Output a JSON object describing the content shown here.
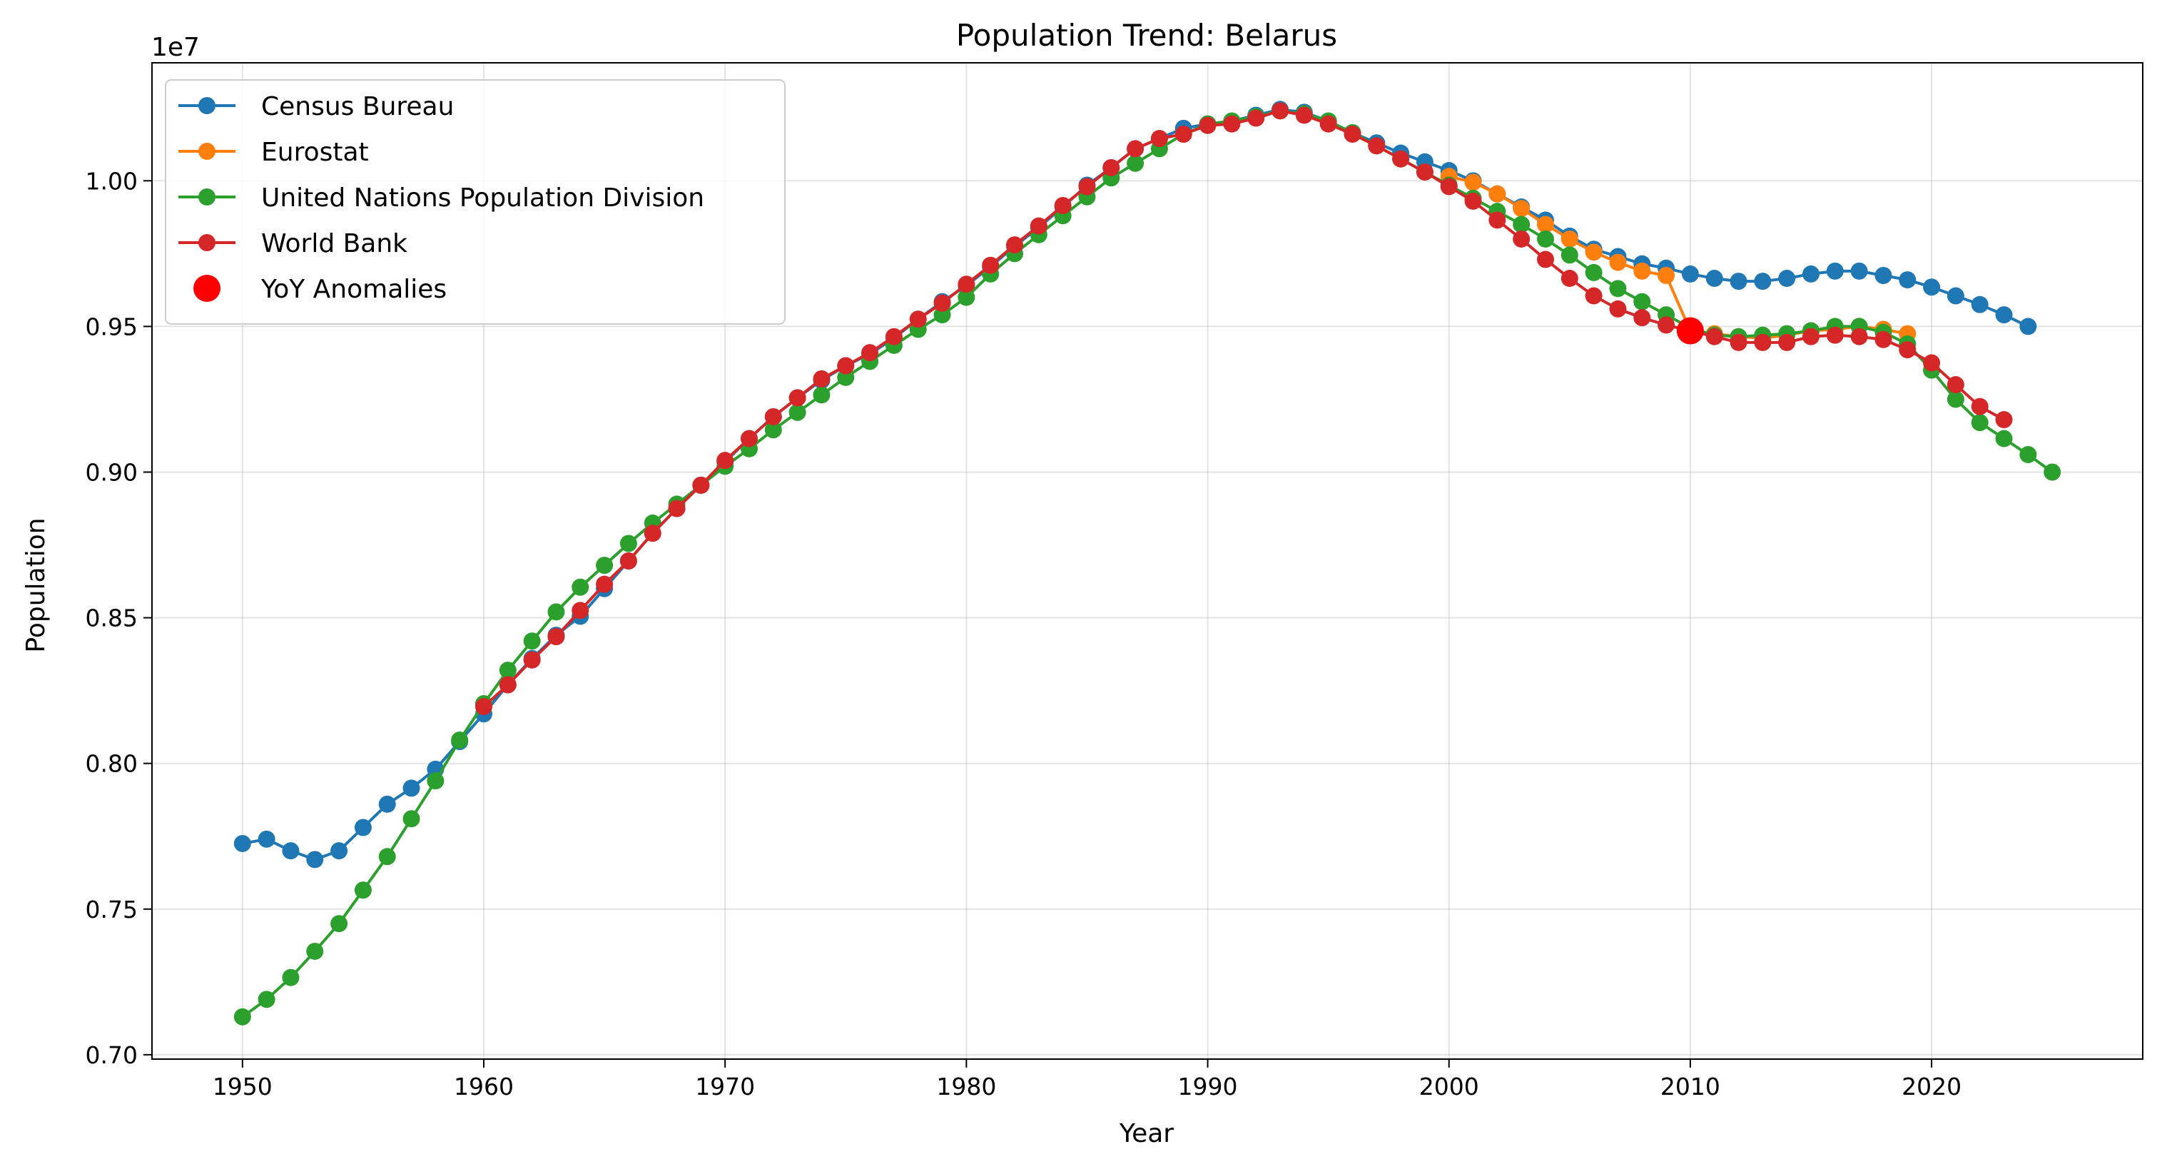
{
  "chart_data": {
    "type": "line",
    "title": "Population Trend: Belarus",
    "xlabel": "Year",
    "ylabel": "Population",
    "y_offset_label": "1e7",
    "xlim": [
      1946.25,
      2028.75
    ],
    "ylim": [
      0.6985,
      1.0405
    ],
    "x_ticks": [
      1950,
      1960,
      1970,
      1980,
      1990,
      2000,
      2010,
      2020
    ],
    "x_tick_labels": [
      "1950",
      "1960",
      "1970",
      "1980",
      "1990",
      "2000",
      "2010",
      "2020"
    ],
    "y_ticks": [
      0.7,
      0.75,
      0.8,
      0.85,
      0.9,
      0.95,
      1.0
    ],
    "y_tick_labels": [
      "0.70",
      "0.75",
      "0.80",
      "0.85",
      "0.90",
      "0.95",
      "1.00"
    ],
    "grid": true,
    "legend_position": "top-left",
    "series": [
      {
        "name": "Census Bureau",
        "color": "#1f77b4",
        "x": [
          1950,
          1951,
          1952,
          1953,
          1954,
          1955,
          1956,
          1957,
          1958,
          1959,
          1960,
          1961,
          1962,
          1963,
          1964,
          1965,
          1966,
          1967,
          1968,
          1969,
          1970,
          1971,
          1972,
          1973,
          1974,
          1975,
          1976,
          1977,
          1978,
          1979,
          1980,
          1981,
          1982,
          1983,
          1984,
          1985,
          1986,
          1987,
          1988,
          1989,
          1990,
          1991,
          1992,
          1993,
          1994,
          1995,
          1996,
          1997,
          1998,
          1999,
          2000,
          2001,
          2002,
          2003,
          2004,
          2005,
          2006,
          2007,
          2008,
          2009,
          2010,
          2011,
          2012,
          2013,
          2014,
          2015,
          2016,
          2017,
          2018,
          2019,
          2020,
          2021,
          2022,
          2023,
          2024
        ],
        "y": [
          0.7725,
          0.774,
          0.77,
          0.767,
          0.77,
          0.778,
          0.786,
          0.7915,
          0.798,
          0.8075,
          0.817,
          0.827,
          0.836,
          0.844,
          0.8505,
          0.86,
          0.8695,
          0.879,
          0.8875,
          0.8955,
          0.9035,
          0.9115,
          0.919,
          0.9255,
          0.9315,
          0.9365,
          0.9405,
          0.946,
          0.9525,
          0.9585,
          0.964,
          0.9705,
          0.9775,
          0.984,
          0.991,
          0.9985,
          1.0045,
          1.011,
          1.0145,
          1.018,
          1.0195,
          1.0205,
          1.0225,
          1.0245,
          1.0235,
          1.0205,
          1.0165,
          1.013,
          1.0095,
          1.0065,
          1.0035,
          1.0,
          0.9955,
          0.991,
          0.9865,
          0.981,
          0.9765,
          0.974,
          0.9715,
          0.97,
          0.968,
          0.9665,
          0.9655,
          0.9655,
          0.9665,
          0.968,
          0.969,
          0.969,
          0.9675,
          0.966,
          0.9635,
          0.9605,
          0.9575,
          0.954,
          0.95
        ]
      },
      {
        "name": "Eurostat",
        "color": "#ff7f0e",
        "x": [
          2000,
          2001,
          2002,
          2003,
          2004,
          2005,
          2006,
          2007,
          2008,
          2009,
          2010,
          2011,
          2012,
          2013,
          2014,
          2015,
          2016,
          2017,
          2018,
          2019
        ],
        "y": [
          1.0015,
          0.9995,
          0.9955,
          0.9905,
          0.985,
          0.98,
          0.9755,
          0.972,
          0.969,
          0.9675,
          0.9485,
          0.9475,
          0.9465,
          0.946,
          0.947,
          0.9485,
          0.949,
          0.95,
          0.949,
          0.9475
        ]
      },
      {
        "name": "United Nations Population Division",
        "color": "#2ca02c",
        "x": [
          1950,
          1951,
          1952,
          1953,
          1954,
          1955,
          1956,
          1957,
          1958,
          1959,
          1960,
          1961,
          1962,
          1963,
          1964,
          1965,
          1966,
          1967,
          1968,
          1969,
          1970,
          1971,
          1972,
          1973,
          1974,
          1975,
          1976,
          1977,
          1978,
          1979,
          1980,
          1981,
          1982,
          1983,
          1984,
          1985,
          1986,
          1987,
          1988,
          1989,
          1990,
          1991,
          1992,
          1993,
          1994,
          1995,
          1996,
          1997,
          1998,
          1999,
          2000,
          2001,
          2002,
          2003,
          2004,
          2005,
          2006,
          2007,
          2008,
          2009,
          2010,
          2011,
          2012,
          2013,
          2014,
          2015,
          2016,
          2017,
          2018,
          2019,
          2020,
          2021,
          2022,
          2023,
          2024,
          2025
        ],
        "y": [
          0.713,
          0.719,
          0.7265,
          0.7355,
          0.745,
          0.7565,
          0.768,
          0.781,
          0.794,
          0.808,
          0.8205,
          0.832,
          0.842,
          0.852,
          0.8605,
          0.868,
          0.8755,
          0.8825,
          0.889,
          0.8955,
          0.902,
          0.908,
          0.9145,
          0.9205,
          0.9265,
          0.9325,
          0.938,
          0.9435,
          0.949,
          0.954,
          0.96,
          0.968,
          0.975,
          0.9815,
          0.988,
          0.9945,
          1.001,
          1.006,
          1.011,
          1.016,
          1.0195,
          1.0205,
          1.022,
          1.024,
          1.023,
          1.0205,
          1.0165,
          1.012,
          1.0075,
          1.003,
          0.9985,
          0.994,
          0.9895,
          0.985,
          0.98,
          0.9745,
          0.9685,
          0.963,
          0.9585,
          0.954,
          0.9495,
          0.947,
          0.9465,
          0.947,
          0.9475,
          0.9485,
          0.95,
          0.95,
          0.948,
          0.944,
          0.935,
          0.925,
          0.917,
          0.9115,
          0.906,
          0.9
        ]
      },
      {
        "name": "World Bank",
        "color": "#d62728",
        "x": [
          1960,
          1961,
          1962,
          1963,
          1964,
          1965,
          1966,
          1967,
          1968,
          1969,
          1970,
          1971,
          1972,
          1973,
          1974,
          1975,
          1976,
          1977,
          1978,
          1979,
          1980,
          1981,
          1982,
          1983,
          1984,
          1985,
          1986,
          1987,
          1988,
          1989,
          1990,
          1991,
          1992,
          1993,
          1994,
          1995,
          1996,
          1997,
          1998,
          1999,
          2000,
          2001,
          2002,
          2003,
          2004,
          2005,
          2006,
          2007,
          2008,
          2009,
          2010,
          2011,
          2012,
          2013,
          2014,
          2015,
          2016,
          2017,
          2018,
          2019,
          2020,
          2021,
          2022,
          2023
        ],
        "y": [
          0.8195,
          0.827,
          0.8355,
          0.8435,
          0.8525,
          0.8615,
          0.8695,
          0.879,
          0.8875,
          0.8955,
          0.904,
          0.9115,
          0.919,
          0.9255,
          0.932,
          0.9365,
          0.941,
          0.9465,
          0.9525,
          0.958,
          0.9645,
          0.971,
          0.978,
          0.9845,
          0.9915,
          0.998,
          1.0045,
          1.011,
          1.0145,
          1.016,
          1.019,
          1.0195,
          1.0215,
          1.024,
          1.0225,
          1.0195,
          1.016,
          1.012,
          1.0075,
          1.003,
          0.998,
          0.993,
          0.9865,
          0.98,
          0.973,
          0.9665,
          0.9605,
          0.956,
          0.953,
          0.9505,
          0.9485,
          0.9465,
          0.9445,
          0.9445,
          0.9445,
          0.9465,
          0.947,
          0.9465,
          0.9455,
          0.942,
          0.9375,
          0.93,
          0.9225,
          0.918
        ]
      },
      {
        "name": "YoY Anomalies",
        "color": "#ff0000",
        "marker_only": true,
        "x": [
          2010
        ],
        "y": [
          0.9485
        ]
      }
    ]
  }
}
